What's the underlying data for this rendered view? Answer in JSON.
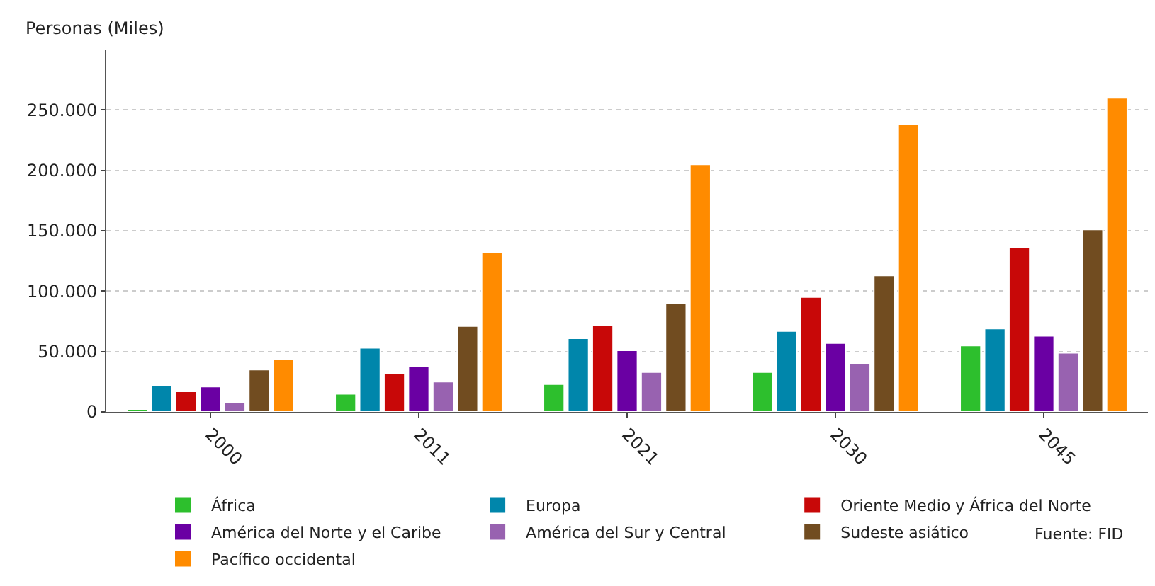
{
  "chart_data": {
    "type": "bar",
    "ylabel": "Personas (Miles)",
    "categories": [
      "2000",
      "2011",
      "2021",
      "2030",
      "2045"
    ],
    "series": [
      {
        "name": "África",
        "color": "#2dbf2d",
        "values": [
          2000,
          15000,
          23000,
          33000,
          55000
        ]
      },
      {
        "name": "Europa",
        "color": "#0086ab",
        "values": [
          22000,
          53000,
          61000,
          67000,
          69000
        ]
      },
      {
        "name": "Oriente Medio y África del Norte",
        "color": "#c80808",
        "values": [
          17000,
          32000,
          72000,
          95000,
          136000
        ]
      },
      {
        "name": "América del Norte y el Caribe",
        "color": "#6a00a3",
        "values": [
          21000,
          38000,
          51000,
          57000,
          63000
        ]
      },
      {
        "name": "América del Sur y Central",
        "color": "#9862b0",
        "values": [
          8000,
          25000,
          33000,
          40000,
          49000
        ]
      },
      {
        "name": "Sudeste asiático",
        "color": "#714c20",
        "values": [
          35000,
          71000,
          90000,
          113000,
          151000
        ]
      },
      {
        "name": "Pacífico occidental",
        "color": "#ff8b00",
        "values": [
          44000,
          132000,
          205000,
          238000,
          260000
        ]
      }
    ],
    "ylim": [
      0,
      300000
    ],
    "yticks": [
      {
        "value": 0,
        "label": "0"
      },
      {
        "value": 50000,
        "label": "50.000"
      },
      {
        "value": 100000,
        "label": "100.000"
      },
      {
        "value": 150000,
        "label": "150.000"
      },
      {
        "value": 200000,
        "label": "200.000"
      },
      {
        "value": 250000,
        "label": "250.000"
      }
    ],
    "grid": "y",
    "legend": "bottom",
    "annotations": [
      "Fuente: FID"
    ]
  }
}
